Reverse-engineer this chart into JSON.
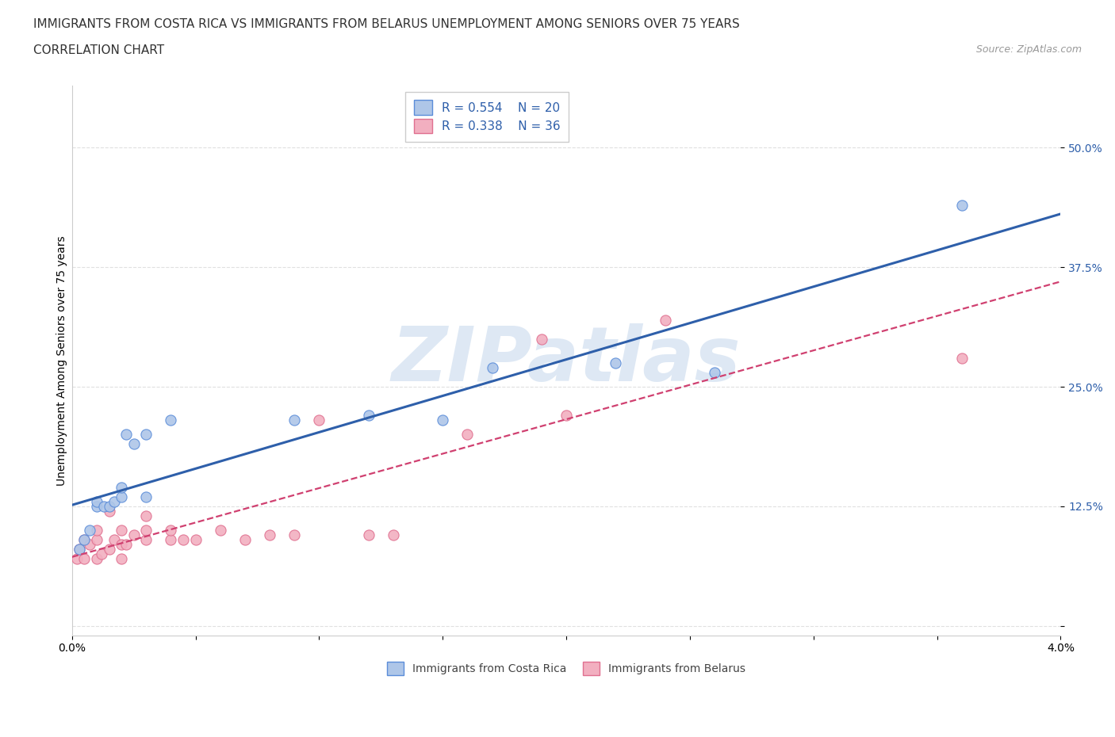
{
  "title_line1": "IMMIGRANTS FROM COSTA RICA VS IMMIGRANTS FROM BELARUS UNEMPLOYMENT AMONG SENIORS OVER 75 YEARS",
  "title_line2": "CORRELATION CHART",
  "source_text": "Source: ZipAtlas.com",
  "ylabel": "Unemployment Among Seniors over 75 years",
  "xlim": [
    0.0,
    0.04
  ],
  "ylim": [
    -0.01,
    0.565
  ],
  "yticks": [
    0.0,
    0.125,
    0.25,
    0.375,
    0.5
  ],
  "yticklabels_right": [
    "",
    "12.5%",
    "25.0%",
    "37.5%",
    "50.0%"
  ],
  "xticks": [
    0.0,
    0.005,
    0.01,
    0.015,
    0.02,
    0.025,
    0.03,
    0.035,
    0.04
  ],
  "xticklabels": [
    "0.0%",
    "",
    "",
    "",
    "",
    "",
    "",
    "",
    "4.0%"
  ],
  "costa_rica_color": "#aec6e8",
  "costa_rica_edge_color": "#5b8dd9",
  "costa_rica_line_color": "#2e5faa",
  "belarus_color": "#f2afc0",
  "belarus_edge_color": "#e07090",
  "belarus_line_color": "#d04070",
  "costa_rica_x": [
    0.0003,
    0.0005,
    0.0007,
    0.001,
    0.001,
    0.0013,
    0.0015,
    0.0017,
    0.002,
    0.002,
    0.0022,
    0.0025,
    0.003,
    0.003,
    0.004,
    0.009,
    0.012,
    0.015,
    0.017,
    0.022,
    0.026,
    0.036
  ],
  "costa_rica_y": [
    0.08,
    0.09,
    0.1,
    0.125,
    0.13,
    0.125,
    0.125,
    0.13,
    0.135,
    0.145,
    0.2,
    0.19,
    0.135,
    0.2,
    0.215,
    0.215,
    0.22,
    0.215,
    0.27,
    0.275,
    0.265,
    0.44
  ],
  "belarus_x": [
    0.0002,
    0.0003,
    0.0005,
    0.0005,
    0.0007,
    0.001,
    0.001,
    0.001,
    0.0012,
    0.0015,
    0.0015,
    0.0017,
    0.002,
    0.002,
    0.002,
    0.0022,
    0.0025,
    0.003,
    0.003,
    0.003,
    0.004,
    0.004,
    0.0045,
    0.005,
    0.006,
    0.007,
    0.008,
    0.009,
    0.01,
    0.012,
    0.013,
    0.016,
    0.019,
    0.02,
    0.024,
    0.036
  ],
  "belarus_y": [
    0.07,
    0.08,
    0.07,
    0.09,
    0.085,
    0.07,
    0.09,
    0.1,
    0.075,
    0.08,
    0.12,
    0.09,
    0.07,
    0.085,
    0.1,
    0.085,
    0.095,
    0.09,
    0.1,
    0.115,
    0.09,
    0.1,
    0.09,
    0.09,
    0.1,
    0.09,
    0.095,
    0.095,
    0.215,
    0.095,
    0.095,
    0.2,
    0.3,
    0.22,
    0.32,
    0.28
  ],
  "background_color": "#ffffff",
  "grid_color": "#e0e0e0",
  "marker_size": 90,
  "title_fontsize": 11,
  "axis_label_fontsize": 10,
  "tick_fontsize": 10,
  "legend_fontsize": 11,
  "watermark_text": "ZIPatlas",
  "watermark_color": "#d0dff0",
  "watermark_fontsize": 70
}
